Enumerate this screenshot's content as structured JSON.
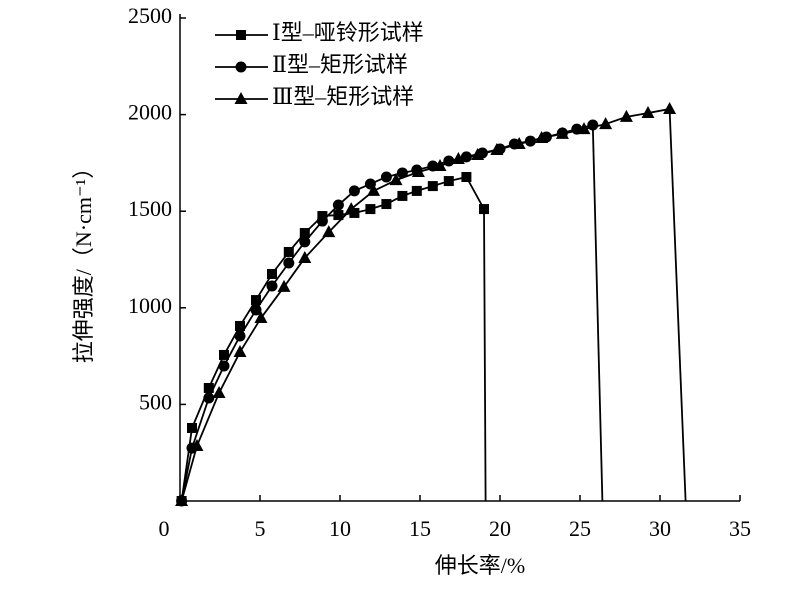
{
  "chart_data": {
    "type": "line",
    "x_label": "伸长率/%",
    "y_label": "拉伸强度/（N·cm⁻¹）",
    "xlim": [
      0,
      35
    ],
    "xticks": [
      0,
      5,
      10,
      15,
      20,
      25,
      30,
      35
    ],
    "ylim": [
      0,
      2500
    ],
    "yticks": [
      500,
      1000,
      1500,
      2000,
      2500
    ],
    "legend": "upper left",
    "series": [
      {
        "name": "Ⅰ型–哑铃形试样",
        "color": "#000000",
        "marker": "square",
        "x": [
          0.1,
          0.75,
          1.8,
          2.75,
          3.75,
          4.75,
          5.75,
          6.8,
          7.8,
          8.9,
          9.9,
          10.9,
          11.9,
          12.9,
          13.9,
          14.8,
          15.8,
          16.8,
          17.9,
          19.0,
          19.1
        ],
        "values": [
          0,
          378,
          585,
          756,
          906,
          1040,
          1175,
          1289,
          1387,
          1475,
          1480,
          1491,
          1511,
          1537,
          1579,
          1605,
          1630,
          1656,
          1677,
          1511,
          0
        ]
      },
      {
        "name": "Ⅱ型–矩形试样",
        "color": "#000000",
        "marker": "circle",
        "x": [
          0.1,
          0.75,
          1.8,
          2.75,
          3.75,
          4.75,
          5.75,
          6.8,
          7.8,
          8.9,
          9.9,
          10.9,
          11.9,
          12.9,
          13.9,
          14.8,
          15.8,
          16.8,
          17.9,
          18.9,
          20.0,
          20.9,
          21.9,
          22.9,
          23.9,
          24.8,
          25.8,
          26.4
        ],
        "values": [
          0,
          274,
          533,
          699,
          854,
          989,
          1113,
          1232,
          1341,
          1449,
          1532,
          1605,
          1641,
          1677,
          1698,
          1713,
          1734,
          1760,
          1781,
          1801,
          1822,
          1848,
          1863,
          1884,
          1905,
          1925,
          1946,
          0
        ]
      },
      {
        "name": "Ⅲ型–矩形试样",
        "color": "#000000",
        "marker": "triangle",
        "x": [
          0.1,
          1.06,
          2.44,
          3.75,
          5.06,
          6.5,
          7.8,
          9.3,
          10.7,
          12.1,
          13.5,
          14.9,
          16.25,
          17.4,
          18.6,
          19.8,
          21.2,
          22.6,
          23.9,
          25.25,
          26.6,
          27.9,
          29.25,
          30.6,
          31.6
        ],
        "values": [
          0,
          285,
          559,
          771,
          947,
          1108,
          1258,
          1392,
          1511,
          1605,
          1661,
          1703,
          1734,
          1770,
          1791,
          1817,
          1848,
          1879,
          1900,
          1925,
          1951,
          1988,
          2008,
          2029,
          0
        ]
      }
    ]
  }
}
